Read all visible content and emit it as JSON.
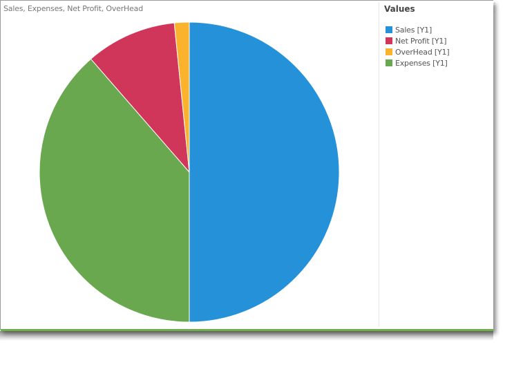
{
  "chart_data": {
    "type": "pie",
    "title": "Sales, Expenses, Net Profit, OverHead",
    "legend_title": "Values",
    "legend_position": "right",
    "slices": [
      {
        "label": "Sales [Y1]",
        "value": 50.0,
        "color": "#2591d8"
      },
      {
        "label": "Expenses [Y1]",
        "value": 38.6,
        "color": "#6aa84f"
      },
      {
        "label": "Net Profit [Y1]",
        "value": 9.8,
        "color": "#d0355a"
      },
      {
        "label": "OverHead [Y1]",
        "value": 1.6,
        "color": "#fbb22d"
      }
    ],
    "legend_order": [
      "Sales [Y1]",
      "Net Profit [Y1]",
      "OverHead [Y1]",
      "Expenses [Y1]"
    ]
  }
}
